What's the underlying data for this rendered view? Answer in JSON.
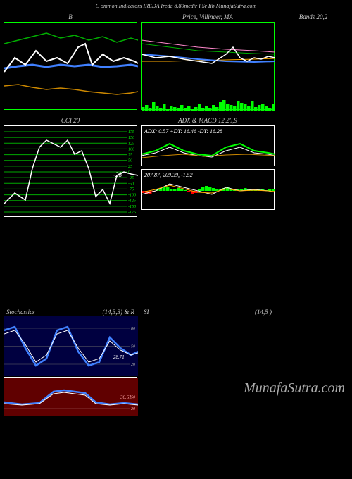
{
  "header": {
    "text": "C         ommon  Indicators IREDA Ireda   8.80mcdir I Sr Iib MunafaSutra.com"
  },
  "watermark": "MunafaSutra.com",
  "row1": {
    "chart1": {
      "title": "B",
      "width": 190,
      "height": 125,
      "border_color": "#00ff00",
      "series": [
        {
          "color": "#00b000",
          "width": 1.5,
          "points": [
            [
              0,
              30
            ],
            [
              20,
              25
            ],
            [
              40,
              20
            ],
            [
              60,
              15
            ],
            [
              80,
              22
            ],
            [
              100,
              18
            ],
            [
              120,
              25
            ],
            [
              140,
              20
            ],
            [
              160,
              28
            ],
            [
              180,
              22
            ],
            [
              190,
              25
            ]
          ]
        },
        {
          "color": "#4080ff",
          "width": 3,
          "points": [
            [
              0,
              65
            ],
            [
              20,
              62
            ],
            [
              40,
              60
            ],
            [
              60,
              63
            ],
            [
              80,
              60
            ],
            [
              100,
              62
            ],
            [
              120,
              60
            ],
            [
              140,
              63
            ],
            [
              160,
              62
            ],
            [
              180,
              60
            ],
            [
              190,
              62
            ]
          ]
        },
        {
          "color": "#ffffff",
          "width": 2,
          "points": [
            [
              0,
              70
            ],
            [
              15,
              50
            ],
            [
              30,
              60
            ],
            [
              45,
              40
            ],
            [
              60,
              55
            ],
            [
              75,
              50
            ],
            [
              90,
              58
            ],
            [
              105,
              35
            ],
            [
              115,
              30
            ],
            [
              125,
              60
            ],
            [
              140,
              45
            ],
            [
              155,
              55
            ],
            [
              170,
              50
            ],
            [
              185,
              55
            ],
            [
              190,
              58
            ]
          ]
        },
        {
          "color": "#cc8800",
          "width": 1.5,
          "points": [
            [
              0,
              90
            ],
            [
              20,
              88
            ],
            [
              40,
              92
            ],
            [
              60,
              95
            ],
            [
              80,
              93
            ],
            [
              100,
              95
            ],
            [
              120,
              98
            ],
            [
              140,
              100
            ],
            [
              160,
              102
            ],
            [
              180,
              100
            ],
            [
              190,
              98
            ]
          ]
        }
      ]
    },
    "chart2": {
      "title": "Price,  Villinger,  MA",
      "width": 190,
      "height": 125,
      "border_color": "#00ff00",
      "volume_color": "#00ff00",
      "volume": [
        5,
        8,
        3,
        12,
        6,
        4,
        9,
        2,
        7,
        5,
        3,
        8,
        4,
        6,
        2,
        5,
        9,
        3,
        7,
        4,
        8,
        5,
        12,
        15,
        10,
        8,
        6,
        14,
        11,
        9,
        7,
        13,
        5,
        8,
        10,
        6,
        4,
        9
      ],
      "series": [
        {
          "color": "#ff88cc",
          "width": 1,
          "points": [
            [
              0,
              25
            ],
            [
              40,
              30
            ],
            [
              80,
              35
            ],
            [
              120,
              38
            ],
            [
              160,
              40
            ],
            [
              190,
              42
            ]
          ]
        },
        {
          "color": "#00b000",
          "width": 1,
          "points": [
            [
              0,
              30
            ],
            [
              40,
              35
            ],
            [
              80,
              40
            ],
            [
              120,
              42
            ],
            [
              160,
              44
            ],
            [
              190,
              45
            ]
          ]
        },
        {
          "color": "#ffaa00",
          "width": 1,
          "points": [
            [
              0,
              55
            ],
            [
              40,
              55
            ],
            [
              80,
              54
            ],
            [
              120,
              53
            ],
            [
              160,
              52
            ],
            [
              190,
              51
            ]
          ]
        },
        {
          "color": "#4080ff",
          "width": 2,
          "points": [
            [
              0,
              45
            ],
            [
              40,
              48
            ],
            [
              80,
              52
            ],
            [
              120,
              55
            ],
            [
              160,
              56
            ],
            [
              190,
              55
            ]
          ]
        },
        {
          "color": "#ffffff",
          "width": 1.5,
          "points": [
            [
              0,
              45
            ],
            [
              20,
              50
            ],
            [
              40,
              48
            ],
            [
              60,
              52
            ],
            [
              80,
              55
            ],
            [
              100,
              58
            ],
            [
              120,
              45
            ],
            [
              130,
              35
            ],
            [
              140,
              50
            ],
            [
              150,
              55
            ],
            [
              160,
              50
            ],
            [
              170,
              52
            ],
            [
              180,
              48
            ],
            [
              190,
              50
            ]
          ]
        }
      ]
    },
    "chart3": {
      "title": "Bands 20,2"
    }
  },
  "row2": {
    "chart1": {
      "title": "CCI 20",
      "width": 190,
      "height": 130,
      "border_color": "#ffffff",
      "grid_color": "#00aa00",
      "grid_levels": [
        175,
        150,
        125,
        100,
        75,
        50,
        25,
        0,
        -25,
        -50,
        -75,
        -100,
        -125,
        -150,
        -175
      ],
      "marker_label": "-28",
      "series": [
        {
          "color": "#ffffff",
          "width": 1.5,
          "points": [
            [
              0,
              110
            ],
            [
              15,
              95
            ],
            [
              30,
              105
            ],
            [
              40,
              60
            ],
            [
              50,
              30
            ],
            [
              60,
              20
            ],
            [
              70,
              25
            ],
            [
              80,
              30
            ],
            [
              90,
              20
            ],
            [
              100,
              40
            ],
            [
              110,
              35
            ],
            [
              120,
              60
            ],
            [
              130,
              100
            ],
            [
              140,
              90
            ],
            [
              150,
              110
            ],
            [
              160,
              70
            ],
            [
              170,
              65
            ],
            [
              180,
              68
            ],
            [
              190,
              70
            ]
          ]
        }
      ]
    },
    "chart2a": {
      "title": "ADX   & MACD 12,26,9",
      "label": "ADX: 0.57 +DY: 16.46   -DY: 16.28",
      "width": 190,
      "height": 58,
      "border_color": "#ffffff",
      "series": [
        {
          "color": "#00ff00",
          "width": 2,
          "points": [
            [
              0,
              40
            ],
            [
              20,
              35
            ],
            [
              40,
              25
            ],
            [
              60,
              35
            ],
            [
              80,
              40
            ],
            [
              100,
              42
            ],
            [
              120,
              30
            ],
            [
              140,
              25
            ],
            [
              160,
              35
            ],
            [
              180,
              38
            ],
            [
              190,
              40
            ]
          ]
        },
        {
          "color": "#ffffff",
          "width": 1,
          "points": [
            [
              0,
              42
            ],
            [
              20,
              38
            ],
            [
              40,
              30
            ],
            [
              60,
              38
            ],
            [
              80,
              42
            ],
            [
              100,
              44
            ],
            [
              120,
              35
            ],
            [
              140,
              30
            ],
            [
              160,
              38
            ],
            [
              180,
              40
            ],
            [
              190,
              42
            ]
          ]
        },
        {
          "color": "#cc8800",
          "width": 1,
          "points": [
            [
              0,
              45
            ],
            [
              30,
              42
            ],
            [
              60,
              40
            ],
            [
              90,
              43
            ],
            [
              120,
              41
            ],
            [
              150,
              40
            ],
            [
              190,
              42
            ]
          ]
        }
      ]
    },
    "chart2b": {
      "label": "207.87,  209.39,  -1.52",
      "width": 190,
      "height": 58,
      "border_color": "#ffffff",
      "histogram_neg": "#ff0000",
      "histogram_pos": "#00ff00",
      "histogram": [
        -3,
        -5,
        -4,
        -2,
        2,
        4,
        6,
        5,
        3,
        2,
        4,
        3,
        1,
        -2,
        -4,
        -3,
        2,
        5,
        7,
        6,
        4,
        3,
        2,
        4,
        5,
        3,
        1,
        2,
        3,
        4,
        2,
        1,
        2,
        3,
        2,
        1,
        2,
        3
      ],
      "series": [
        {
          "color": "#ffffff",
          "width": 1,
          "points": [
            [
              0,
              35
            ],
            [
              20,
              30
            ],
            [
              40,
              20
            ],
            [
              60,
              25
            ],
            [
              80,
              30
            ],
            [
              100,
              35
            ],
            [
              120,
              25
            ],
            [
              140,
              30
            ],
            [
              160,
              28
            ],
            [
              180,
              30
            ],
            [
              190,
              32
            ]
          ]
        },
        {
          "color": "#ffaa00",
          "width": 1,
          "points": [
            [
              0,
              32
            ],
            [
              20,
              28
            ],
            [
              40,
              22
            ],
            [
              60,
              27
            ],
            [
              80,
              32
            ],
            [
              100,
              33
            ],
            [
              120,
              27
            ],
            [
              140,
              30
            ],
            [
              160,
              29
            ],
            [
              180,
              30
            ],
            [
              190,
              31
            ]
          ]
        }
      ]
    }
  },
  "row3": {
    "chart1": {
      "title_left": "Stochastics",
      "title_right": "(14,3,3) & R",
      "width": 190,
      "height": 85,
      "bg_color": "#000040",
      "grid_color": "#666666",
      "grid_levels": [
        80,
        50,
        20
      ],
      "marker_label": "28.71",
      "series": [
        {
          "color": "#4080ff",
          "width": 2.5,
          "points": [
            [
              0,
              20
            ],
            [
              15,
              15
            ],
            [
              30,
              45
            ],
            [
              45,
              70
            ],
            [
              60,
              60
            ],
            [
              75,
              20
            ],
            [
              90,
              15
            ],
            [
              105,
              50
            ],
            [
              120,
              70
            ],
            [
              135,
              65
            ],
            [
              150,
              30
            ],
            [
              165,
              45
            ],
            [
              180,
              55
            ],
            [
              190,
              50
            ]
          ]
        },
        {
          "color": "#ffffff",
          "width": 1,
          "points": [
            [
              0,
              25
            ],
            [
              15,
              20
            ],
            [
              30,
              40
            ],
            [
              45,
              65
            ],
            [
              60,
              55
            ],
            [
              75,
              25
            ],
            [
              90,
              20
            ],
            [
              105,
              45
            ],
            [
              120,
              65
            ],
            [
              135,
              60
            ],
            [
              150,
              35
            ],
            [
              165,
              48
            ],
            [
              180,
              55
            ],
            [
              190,
              52
            ]
          ]
        }
      ]
    },
    "chart1b": {
      "width": 190,
      "height": 55,
      "bg_color": "#600000",
      "grid_color": "#aa6666",
      "grid_levels": [
        50,
        20
      ],
      "marker_label": "36.61",
      "series": [
        {
          "color": "#4080ff",
          "width": 2.5,
          "points": [
            [
              0,
              35
            ],
            [
              25,
              38
            ],
            [
              50,
              36
            ],
            [
              70,
              20
            ],
            [
              85,
              18
            ],
            [
              100,
              20
            ],
            [
              115,
              22
            ],
            [
              130,
              35
            ],
            [
              150,
              38
            ],
            [
              170,
              36
            ],
            [
              190,
              38
            ]
          ]
        },
        {
          "color": "#ffffff",
          "width": 1,
          "points": [
            [
              0,
              37
            ],
            [
              25,
              39
            ],
            [
              50,
              37
            ],
            [
              70,
              23
            ],
            [
              85,
              21
            ],
            [
              100,
              23
            ],
            [
              115,
              25
            ],
            [
              130,
              37
            ],
            [
              150,
              39
            ],
            [
              170,
              37
            ],
            [
              190,
              39
            ]
          ]
        }
      ]
    },
    "chart2": {
      "title_left": "SI",
      "title_right": "(14,5                            )"
    }
  }
}
